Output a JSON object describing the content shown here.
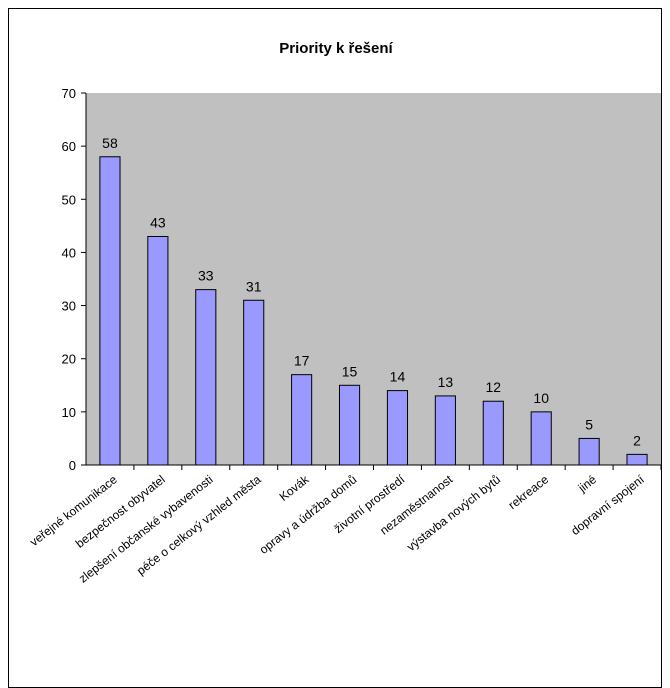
{
  "chart_data": {
    "type": "bar",
    "title": "Priority k řešení",
    "xlabel": "",
    "ylabel": "",
    "ylim": [
      0,
      70
    ],
    "yticks": [
      0,
      10,
      20,
      30,
      40,
      50,
      60,
      70
    ],
    "grid": false,
    "legend": "none",
    "categories": [
      "veřejné komunikace",
      "bezpečnost obyvatel",
      "zlepšení občanské vybavenosti",
      "péče o celkový vzhled města",
      "Kovák",
      "opravy a údržba domů",
      "životní prostředí",
      "nezaměstnanost",
      "výstavba nových bytů",
      "rekreace",
      "jiné",
      "dopravní spojení"
    ],
    "values": [
      58,
      43,
      33,
      31,
      17,
      15,
      14,
      13,
      12,
      10,
      5,
      2
    ],
    "colors": {
      "plot_background": "#c0c0c0",
      "bar_fill": "#9999ff",
      "bar_stroke": "#000000"
    }
  }
}
